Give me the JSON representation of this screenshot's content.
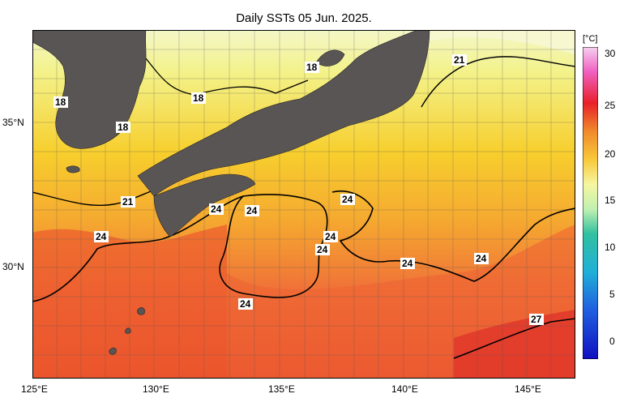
{
  "title": "Daily SSTs 05 Jun. 2025.",
  "colorbar": {
    "unit": "[°C]",
    "ticks": [
      "30",
      "25",
      "20",
      "15",
      "10",
      "5",
      "0"
    ]
  },
  "axes": {
    "x_ticks": [
      "125°E",
      "130°E",
      "135°E",
      "140°E",
      "145°E"
    ],
    "y_ticks": [
      "35°N",
      "30°N"
    ]
  },
  "contour_labels": [
    "18",
    "18",
    "18",
    "18",
    "21",
    "21",
    "24",
    "24",
    "24",
    "24",
    "24",
    "24",
    "24",
    "24",
    "24",
    "27"
  ],
  "colors": {
    "land": "#5a5555",
    "sst_18": "#f3f28a",
    "sst_21": "#f8d83a",
    "sst_24": "#f5a02c",
    "sst_27": "#ea4a2a"
  }
}
